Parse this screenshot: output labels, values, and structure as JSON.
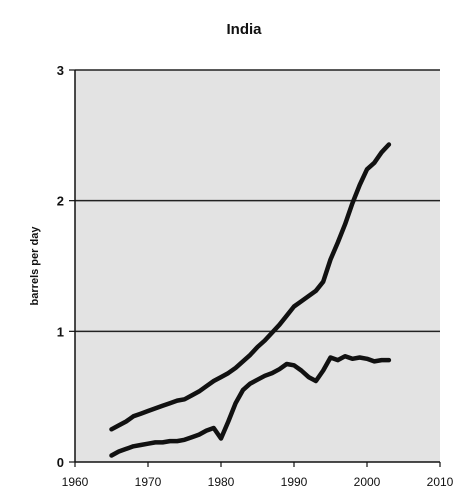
{
  "chart_data": {
    "type": "line",
    "title": "India",
    "xlabel": "",
    "ylabel": "barrels per day",
    "xlim": [
      1960,
      2010
    ],
    "ylim": [
      0,
      3
    ],
    "x_ticks": [
      1960,
      1970,
      1980,
      1990,
      2000,
      2010
    ],
    "y_ticks": [
      0,
      1,
      2,
      3
    ],
    "grid": "horizontal",
    "legend": "none",
    "colors": {
      "plot_background": "#e3e3e3",
      "line": "#111111",
      "grid": "#222222"
    },
    "series": [
      {
        "x": [
          1965,
          1966,
          1967,
          1968,
          1969,
          1970,
          1971,
          1972,
          1973,
          1974,
          1975,
          1976,
          1977,
          1978,
          1979,
          1980,
          1981,
          1982,
          1983,
          1984,
          1985,
          1986,
          1987,
          1988,
          1989,
          1990,
          1991,
          1992,
          1993,
          1994,
          1995,
          1996,
          1997,
          1998,
          1999,
          2000,
          2001,
          2002,
          2003
        ],
        "values": [
          0.25,
          0.28,
          0.31,
          0.35,
          0.37,
          0.39,
          0.41,
          0.43,
          0.45,
          0.47,
          0.48,
          0.51,
          0.54,
          0.58,
          0.62,
          0.65,
          0.68,
          0.72,
          0.77,
          0.82,
          0.88,
          0.93,
          0.99,
          1.05,
          1.12,
          1.19,
          1.23,
          1.27,
          1.31,
          1.38,
          1.55,
          1.68,
          1.82,
          1.98,
          2.12,
          2.24,
          2.29,
          2.37,
          2.43
        ]
      },
      {
        "x": [
          1965,
          1966,
          1967,
          1968,
          1969,
          1970,
          1971,
          1972,
          1973,
          1974,
          1975,
          1976,
          1977,
          1978,
          1979,
          1980,
          1981,
          1982,
          1983,
          1984,
          1985,
          1986,
          1987,
          1988,
          1989,
          1990,
          1991,
          1992,
          1993,
          1994,
          1995,
          1996,
          1997,
          1998,
          1999,
          2000,
          2001,
          2002,
          2003
        ],
        "values": [
          0.05,
          0.08,
          0.1,
          0.12,
          0.13,
          0.14,
          0.15,
          0.15,
          0.16,
          0.16,
          0.17,
          0.19,
          0.21,
          0.24,
          0.26,
          0.18,
          0.31,
          0.45,
          0.55,
          0.6,
          0.63,
          0.66,
          0.68,
          0.71,
          0.75,
          0.74,
          0.7,
          0.65,
          0.62,
          0.7,
          0.8,
          0.78,
          0.81,
          0.79,
          0.8,
          0.79,
          0.77,
          0.78,
          0.78
        ]
      }
    ]
  }
}
